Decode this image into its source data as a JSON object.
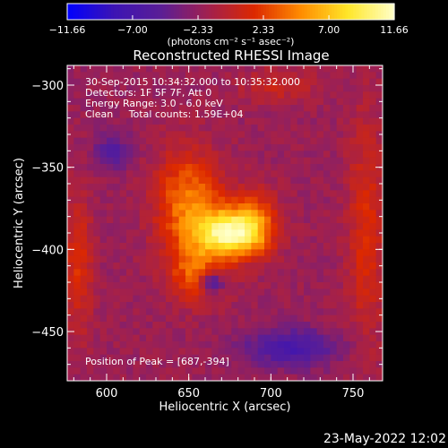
{
  "chart_data": {
    "type": "heatmap",
    "title": "Reconstructed RHESSI Image",
    "xlabel": "Heliocentric X (arcsec)",
    "ylabel": "Heliocentric Y (arcsec)",
    "xlim": [
      576,
      768
    ],
    "ylim": [
      -480,
      -288
    ],
    "xticks": [
      "600",
      "650",
      "700",
      "750"
    ],
    "yticks": [
      "-300",
      "-350",
      "-400",
      "-450"
    ],
    "colorbar": {
      "ticks": [
        "-11.66",
        "-7.00",
        "-2.33",
        "2.33",
        "7.00",
        "11.66"
      ],
      "range": [
        -11.66,
        11.66
      ],
      "unit_label": "(photons cm⁻² s⁻¹ asec⁻²)",
      "colormap": [
        "#0000ff",
        "#3c14b4",
        "#5a1e96",
        "#a02050",
        "#dc2800",
        "#ff8c00",
        "#ffe628",
        "#ffffc8"
      ]
    },
    "annotations": [
      "30-Sep-2015 10:34:32.000 to 10:35:32.000",
      "Detectors: 1F 5F 7F, Att 0",
      "Energy Range: 3.0 - 6.0 keV",
      "Clean     Total counts: 1.59E+04"
    ],
    "peak_label": "Position of Peak = [687,-394]",
    "peak": {
      "x": 687,
      "y": -394
    },
    "sources": [
      {
        "x": 675,
        "y": -390,
        "amplitude": 11.5,
        "sigma_x": 14,
        "sigma_y": 10
      },
      {
        "x": 650,
        "y": -372,
        "amplitude": 6.5,
        "sigma_x": 14,
        "sigma_y": 22
      },
      {
        "x": 690,
        "y": -383,
        "amplitude": 4.5,
        "sigma_x": 10,
        "sigma_y": 14
      },
      {
        "x": 655,
        "y": -415,
        "amplitude": 5.0,
        "sigma_x": 12,
        "sigma_y": 12
      },
      {
        "x": 664,
        "y": -420,
        "amplitude": -7.0,
        "sigma_x": 5,
        "sigma_y": 5
      },
      {
        "x": 712,
        "y": -460,
        "amplitude": -5.0,
        "sigma_x": 20,
        "sigma_y": 8
      },
      {
        "x": 603,
        "y": -340,
        "amplitude": -3.5,
        "sigma_x": 8,
        "sigma_y": 8
      },
      {
        "x": 583,
        "y": -410,
        "amplitude": 3.5,
        "sigma_x": 6,
        "sigma_y": 30
      },
      {
        "x": 758,
        "y": -390,
        "amplitude": 3.5,
        "sigma_x": 8,
        "sigma_y": 50
      },
      {
        "x": 705,
        "y": -300,
        "amplitude": 2.5,
        "sigma_x": 16,
        "sigma_y": 7
      }
    ],
    "background_level": -2.0,
    "grid": false
  },
  "footer": {
    "date": "23-May-2022 12:02"
  }
}
